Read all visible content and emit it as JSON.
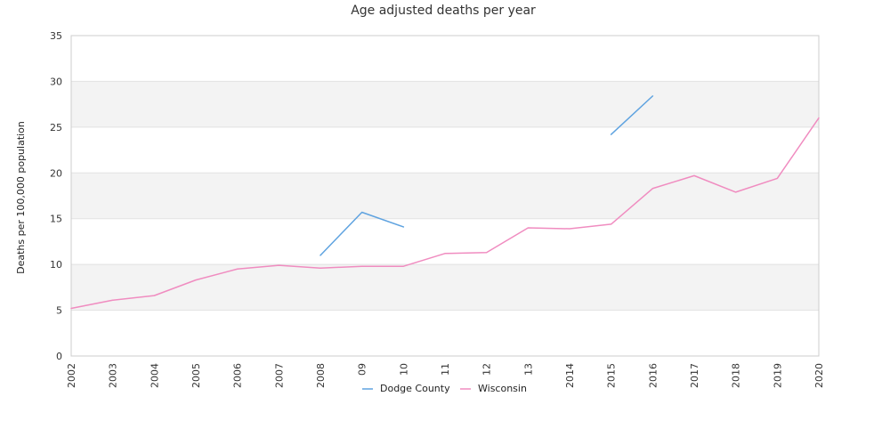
{
  "chart_data": {
    "type": "line",
    "title": "Age adjusted deaths per year",
    "ylabel": "Deaths per 100,000 population",
    "xlabel": "",
    "ylim": [
      0,
      35
    ],
    "yticks": [
      0,
      5,
      10,
      15,
      20,
      25,
      30,
      35
    ],
    "categories": [
      "2002",
      "2003",
      "2004",
      "2005",
      "2006",
      "2007",
      "2008",
      "09",
      "10",
      "11",
      "12",
      "13",
      "2014",
      "2015",
      "2016",
      "2017",
      "2018",
      "2019",
      "2020"
    ],
    "grid": "alternating horizontal bands",
    "legend_position": "bottom-center",
    "series": [
      {
        "name": "Dodge County",
        "color": "#5fa3e0",
        "values": [
          null,
          null,
          null,
          null,
          null,
          null,
          11.0,
          15.7,
          14.1,
          null,
          null,
          null,
          null,
          24.2,
          28.4,
          null,
          null,
          null,
          null
        ]
      },
      {
        "name": "Wisconsin",
        "color": "#f08cc0",
        "values": [
          5.2,
          6.1,
          6.6,
          8.3,
          9.5,
          9.9,
          9.6,
          9.8,
          9.8,
          11.2,
          11.3,
          14.0,
          13.9,
          14.4,
          18.3,
          19.7,
          17.9,
          19.4,
          26.0
        ]
      }
    ]
  }
}
